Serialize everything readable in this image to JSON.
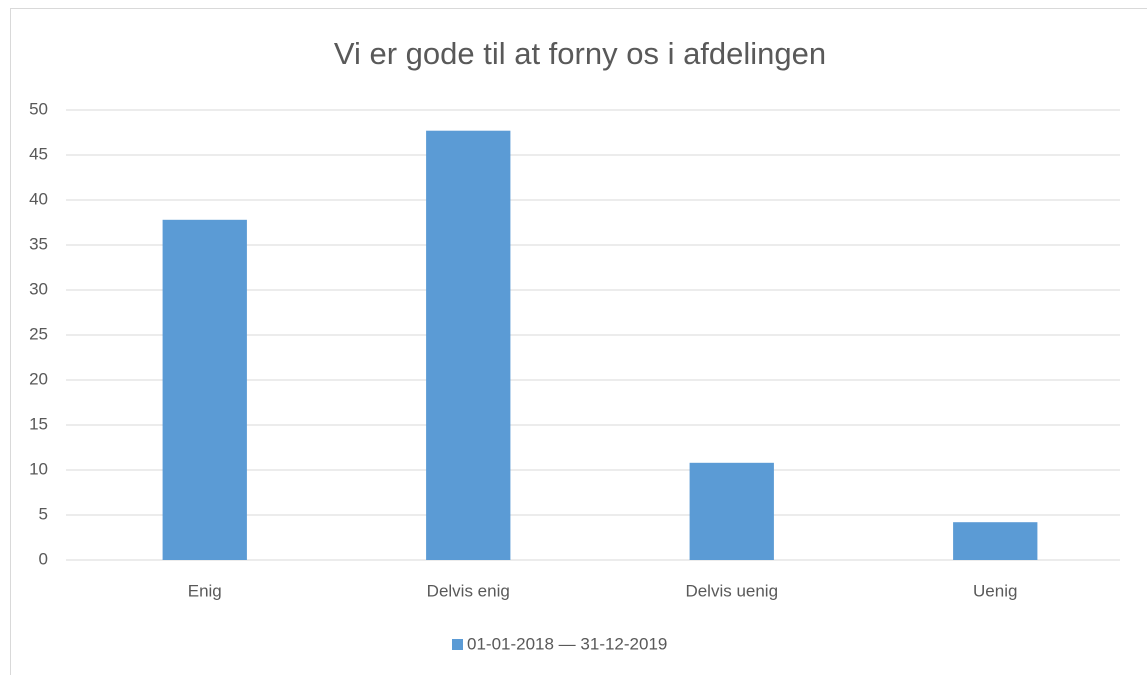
{
  "chart_data": {
    "type": "bar",
    "title": "Vi er gode til at forny os i afdelingen",
    "categories": [
      "Enig",
      "Delvis enig",
      "Delvis uenig",
      "Uenig"
    ],
    "series": [
      {
        "name": "01-01-2018 — 31-12-2019",
        "color": "#5b9bd5",
        "values": [
          37.8,
          47.7,
          10.8,
          4.2
        ]
      }
    ],
    "ylim": [
      0,
      50
    ],
    "yticks": [
      0,
      5,
      10,
      15,
      20,
      25,
      30,
      35,
      40,
      45,
      50
    ],
    "grid": true,
    "legend": "bottom"
  }
}
